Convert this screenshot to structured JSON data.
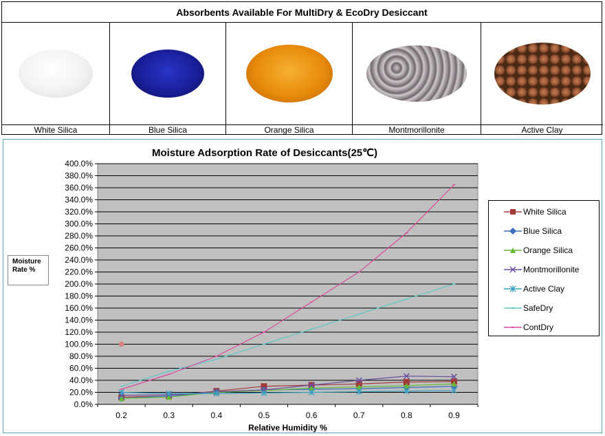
{
  "header": {
    "title": "Absorbents Available For MultiDry & EcoDry Desiccant"
  },
  "absorbents": [
    {
      "label": "White Silica",
      "color": "#e9e9e9"
    },
    {
      "label": "Blue Silica",
      "color": "#1a1f9a"
    },
    {
      "label": "Orange Silica",
      "color": "#e88b0c"
    },
    {
      "label": "Montmorillonite",
      "color": "#9a9297"
    },
    {
      "label": "Active Clay",
      "color": "#9b5a36"
    }
  ],
  "y_axis_box": {
    "line1": "Moisture",
    "line2": "Rate %"
  },
  "chart_data": {
    "type": "line",
    "title": "Moisture Adsorption Rate of Desiccants(25℃)",
    "xlabel": "Relative Humidity %",
    "ylabel": "Moisture Rate %",
    "x": [
      0.2,
      0.3,
      0.4,
      0.5,
      0.6,
      0.7,
      0.8,
      0.9
    ],
    "x_tick_labels": [
      "0.2",
      "0.3",
      "0.4",
      "0.5",
      "0.6",
      "0.7",
      "0.8",
      "0.9"
    ],
    "ylim": [
      0,
      400
    ],
    "y_ticks": [
      0,
      20,
      40,
      60,
      80,
      100,
      120,
      140,
      160,
      180,
      200,
      220,
      240,
      260,
      280,
      300,
      320,
      340,
      360,
      380,
      400
    ],
    "y_tick_labels": [
      "0.0%",
      "20.0%",
      "40.0%",
      "60.0%",
      "80.0%",
      "100.0%",
      "120.0%",
      "140.0%",
      "160.0%",
      "180.0%",
      "200.0%",
      "220.0%",
      "240.0%",
      "260.0%",
      "280.0%",
      "300.0%",
      "320.0%",
      "340.0%",
      "360.0%",
      "380.0%",
      "400.0%"
    ],
    "grid": true,
    "plot_background": "#c0c0c0",
    "legend_position": "right",
    "series": [
      {
        "name": "White Silica",
        "color": "#a33a3a",
        "marker": "square",
        "values": [
          12,
          14,
          22,
          30,
          32,
          34,
          37,
          38
        ]
      },
      {
        "name": "Blue Silica",
        "color": "#3b6cc2",
        "marker": "diamond",
        "values": [
          10,
          14,
          20,
          24,
          25,
          26,
          28,
          30
        ]
      },
      {
        "name": "Orange Silica",
        "color": "#66bb33",
        "marker": "triangle",
        "values": [
          10,
          12,
          20,
          23,
          27,
          29,
          31,
          34
        ]
      },
      {
        "name": "Montmorillonite",
        "color": "#6b4fa0",
        "marker": "x",
        "values": [
          15,
          16,
          21,
          24,
          32,
          40,
          47,
          46
        ]
      },
      {
        "name": "Active Clay",
        "color": "#3aa0c0",
        "marker": "star",
        "values": [
          20,
          18,
          18,
          19,
          20,
          21,
          22,
          23
        ]
      },
      {
        "name": "SafeDry",
        "color": "#5fc8c8",
        "marker": "dash",
        "values": [
          30,
          55,
          75,
          100,
          125,
          150,
          175,
          200
        ]
      },
      {
        "name": "ContDry",
        "color": "#d94b9e",
        "marker": "dash",
        "values": [
          25,
          50,
          80,
          120,
          170,
          220,
          285,
          365
        ]
      }
    ],
    "annotations": [
      {
        "type": "point",
        "x": 0.2,
        "y": 100,
        "color": "#d98080"
      }
    ]
  }
}
